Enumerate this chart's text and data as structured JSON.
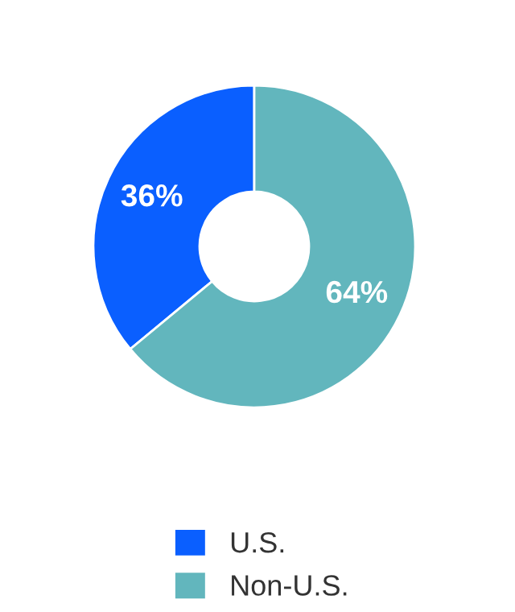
{
  "chart_data": {
    "type": "donut",
    "categories": [
      "U.S.",
      "Non-U.S."
    ],
    "values": [
      36,
      64
    ],
    "colors": [
      "#0a5fff",
      "#62b6bd"
    ],
    "value_labels": [
      "36%",
      "64%"
    ],
    "legend": "bottom"
  }
}
